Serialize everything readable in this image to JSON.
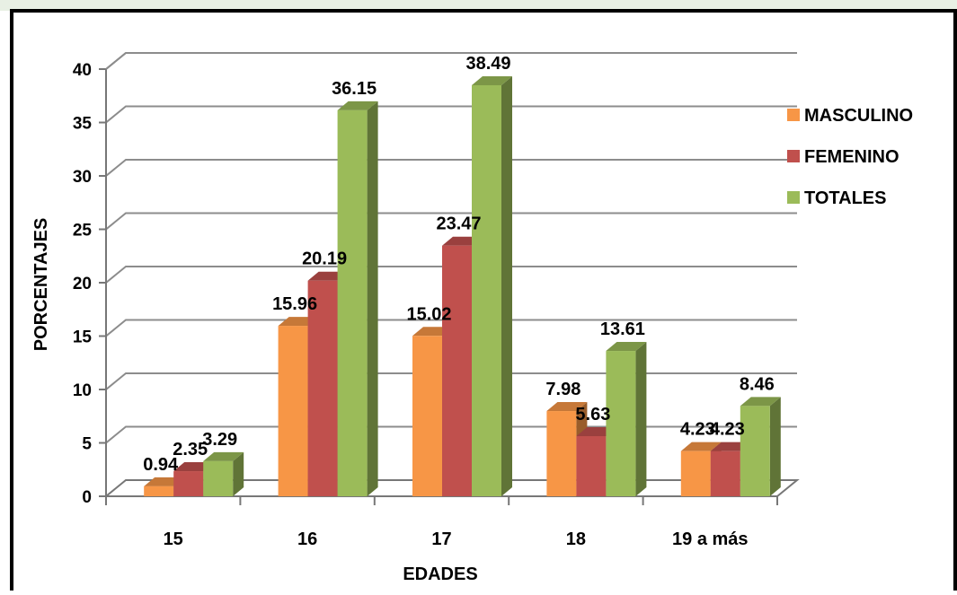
{
  "chart_data": {
    "type": "bar",
    "title": "",
    "xlabel": "EDADES",
    "ylabel": "PORCENTAJES",
    "categories": [
      "15",
      "16",
      "17",
      "18",
      "19 a más"
    ],
    "ylim": [
      0,
      40
    ],
    "yticks": [
      0,
      5,
      10,
      15,
      20,
      25,
      30,
      35,
      40
    ],
    "grid": true,
    "legend_position": "right",
    "series": [
      {
        "name": "MASCULINO",
        "color": "#f79646",
        "values": [
          0.94,
          15.96,
          15.02,
          7.98,
          4.23
        ],
        "labels": [
          "0.94",
          "15.96",
          "15.02",
          "7.98",
          "4.23"
        ]
      },
      {
        "name": "FEMENINO",
        "color": "#c0504d",
        "values": [
          2.35,
          20.19,
          23.47,
          5.63,
          4.23
        ],
        "labels": [
          "2.35",
          "20.19",
          "23.47",
          "5.63",
          "4.23"
        ]
      },
      {
        "name": "TOTALES",
        "color": "#9bbb59",
        "values": [
          3.29,
          36.15,
          38.49,
          13.61,
          8.46
        ],
        "labels": [
          "3.29",
          "36.15",
          "38.49",
          "13.61",
          "8.46"
        ]
      }
    ]
  }
}
